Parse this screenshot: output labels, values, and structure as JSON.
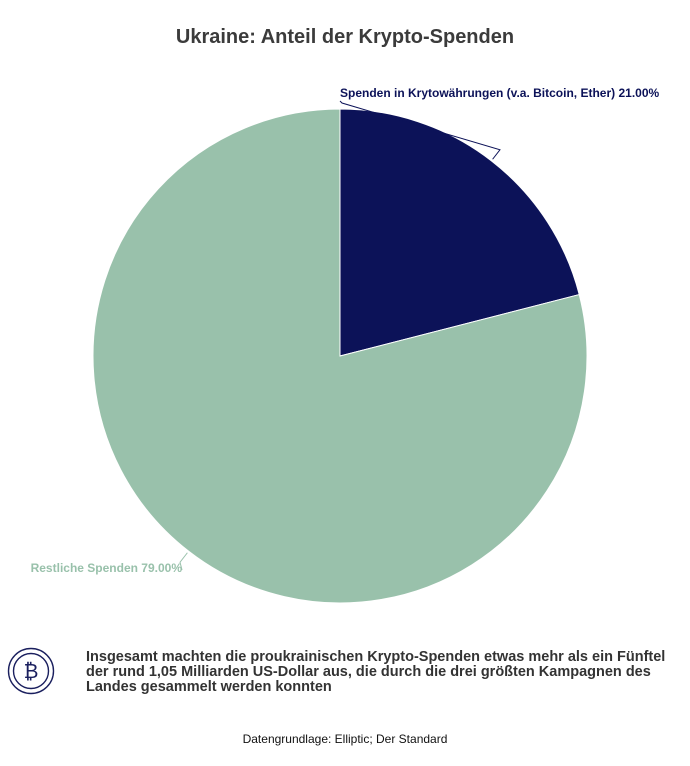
{
  "title": "Ukraine: Anteil der Krypto-Spenden",
  "chart_data": {
    "type": "pie",
    "slices": [
      {
        "label": "Spenden in Krytowährungen (v.a. Bitcoin, Ether)",
        "value": 21.0,
        "value_label": "21.00%",
        "color": "#0c1258"
      },
      {
        "label": "Restliche Spenden",
        "value": 79.0,
        "value_label": "79.00%",
        "color": "#99c1ab"
      }
    ]
  },
  "footer": {
    "text": "Insgesamt machten die proukrainischen Krypto-Spenden etwas mehr als ein Fünftel der rund 1,05 Milliarden US-Dollar aus, die durch die drei größten Kampagnen des Landes gesammelt werden konnten",
    "icon": "bitcoin-icon",
    "icon_color": "#1a1f5e"
  },
  "source": "Datengrundlage: Elliptic; Der Standard"
}
